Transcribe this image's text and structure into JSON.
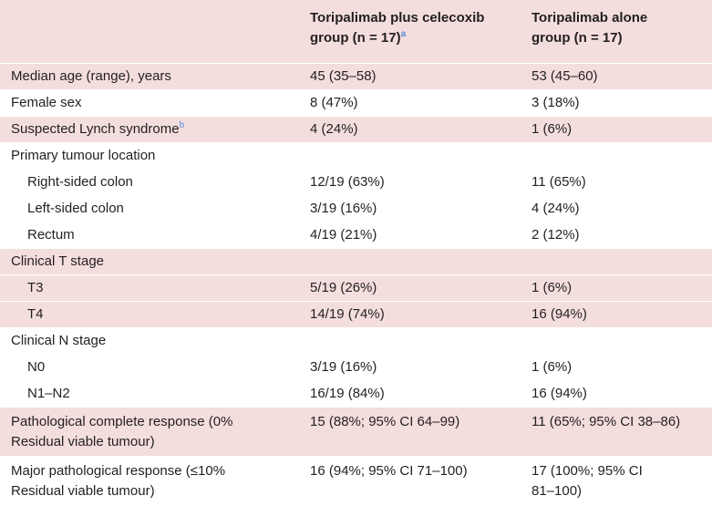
{
  "header": {
    "col1": "",
    "col2_line1": "Toripalimab plus celecoxib",
    "col2_line2": "group (n = 17)",
    "col2_sup": "a",
    "col3_line1": "Toripalimab alone",
    "col3_line2": "group (n = 17)"
  },
  "rows": [
    {
      "label": "Median age (range), years",
      "g1": "45 (35–58)",
      "g2": "53 (45–60)"
    },
    {
      "label": "Female sex",
      "g1": "8 (47%)",
      "g2": "3 (18%)"
    },
    {
      "label": "Suspected Lynch syndrome",
      "sup": "b",
      "g1": "4 (24%)",
      "g2": "1 (6%)"
    },
    {
      "label": "Primary tumour location",
      "g1": "",
      "g2": ""
    },
    {
      "label": "Right-sided colon",
      "g1": "12/19 (63%)",
      "g2": "11 (65%)"
    },
    {
      "label": "Left-sided colon",
      "g1": "3/19 (16%)",
      "g2": "4 (24%)"
    },
    {
      "label": "Rectum",
      "g1": "4/19 (21%)",
      "g2": "2 (12%)"
    },
    {
      "label": "Clinical T stage",
      "g1": "",
      "g2": ""
    },
    {
      "label": "T3",
      "g1": "5/19 (26%)",
      "g2": "1 (6%)"
    },
    {
      "label": "T4",
      "g1": "14/19 (74%)",
      "g2": "16 (94%)"
    },
    {
      "label": "Clinical N stage",
      "g1": "",
      "g2": ""
    },
    {
      "label": "N0",
      "g1": "3/19 (16%)",
      "g2": "1 (6%)"
    },
    {
      "label": "N1–N2",
      "g1": "16/19 (84%)",
      "g2": "16 (94%)"
    },
    {
      "label_l1": "Pathological complete response (0%",
      "label_l2": "Residual viable tumour)",
      "g1": "15 (88%; 95% CI 64–99)",
      "g2": "11 (65%; 95% CI 38–86)"
    },
    {
      "label_l1": "Major pathological response (≤10%",
      "label_l2": "Residual viable tumour)",
      "g1": "16 (94%; 95% CI 71–100)",
      "g2_l1": "17 (100%; 95% CI",
      "g2_l2": "81–100)"
    }
  ],
  "colors": {
    "shade": "#f4dedd",
    "text": "#231f20",
    "footnote": "#5a8dd8"
  }
}
